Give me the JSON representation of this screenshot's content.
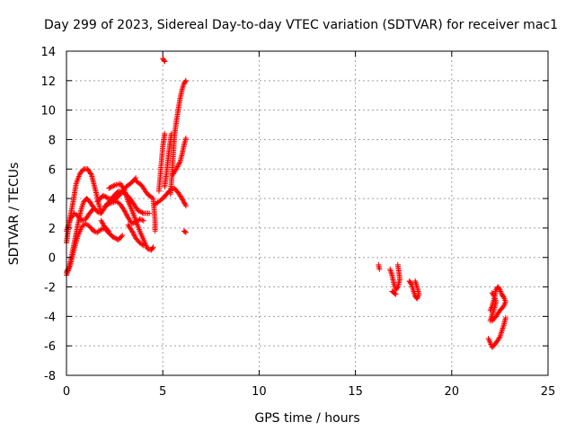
{
  "chart_data": {
    "type": "scatter",
    "title": "Day 299 of 2023, Sidereal Day-to-day VTEC variation (SDTVAR) for receiver mac1",
    "xlabel": "GPS time / hours",
    "ylabel": "SDTVAR / TECUs",
    "xlim": [
      0,
      25
    ],
    "ylim": [
      -8,
      14
    ],
    "grid": true,
    "marker": "+",
    "xticks": [
      0,
      5,
      10,
      15,
      20,
      25
    ],
    "xtick_labels": [
      "0",
      "5",
      "10",
      "15",
      "20",
      "25"
    ],
    "yticks": [
      -8,
      -6,
      -4,
      -2,
      0,
      2,
      4,
      6,
      8,
      10,
      12,
      14
    ],
    "ytick_labels": [
      "-8",
      "-6",
      "-4",
      "-2",
      "0",
      "2",
      "4",
      "6",
      "8",
      "10",
      "12",
      "14"
    ],
    "series": [
      {
        "name": "SDTVAR",
        "color": "#ff0000",
        "tracks": [
          [
            [
              0.0,
              1.0
            ],
            [
              0.1,
              2.0
            ],
            [
              0.2,
              2.8
            ],
            [
              0.35,
              3.8
            ],
            [
              0.5,
              5.0
            ],
            [
              0.7,
              5.7
            ],
            [
              0.9,
              6.0
            ],
            [
              1.1,
              6.0
            ],
            [
              1.3,
              5.6
            ],
            [
              1.5,
              4.6
            ],
            [
              1.7,
              3.5
            ],
            [
              1.8,
              3.0
            ]
          ],
          [
            [
              0.0,
              -1.0
            ],
            [
              0.15,
              -0.6
            ],
            [
              0.3,
              0.3
            ],
            [
              0.45,
              1.3
            ],
            [
              0.6,
              2.3
            ],
            [
              0.75,
              3.2
            ],
            [
              0.9,
              3.8
            ],
            [
              1.05,
              4.0
            ],
            [
              1.2,
              3.8
            ],
            [
              1.4,
              3.4
            ],
            [
              1.6,
              3.1
            ],
            [
              1.8,
              3.0
            ]
          ],
          [
            [
              0.0,
              -1.2
            ],
            [
              0.2,
              -0.5
            ],
            [
              0.4,
              0.6
            ],
            [
              0.6,
              1.5
            ],
            [
              0.8,
              2.1
            ],
            [
              1.0,
              2.3
            ],
            [
              1.2,
              2.1
            ],
            [
              1.4,
              1.8
            ],
            [
              1.6,
              1.7
            ],
            [
              1.8,
              1.9
            ],
            [
              2.0,
              2.0
            ],
            [
              2.2,
              1.8
            ]
          ],
          [
            [
              0.0,
              1.8
            ],
            [
              0.2,
              2.6
            ],
            [
              0.4,
              3.0
            ],
            [
              0.6,
              2.8
            ],
            [
              0.8,
              2.5
            ],
            [
              1.0,
              2.6
            ],
            [
              1.2,
              3.0
            ],
            [
              1.4,
              3.3
            ]
          ],
          [
            [
              1.8,
              2.5
            ],
            [
              2.1,
              1.8
            ],
            [
              2.4,
              1.4
            ],
            [
              2.7,
              1.2
            ],
            [
              2.9,
              1.5
            ]
          ],
          [
            [
              1.8,
              3.0
            ],
            [
              2.1,
              3.6
            ],
            [
              2.4,
              4.1
            ],
            [
              2.7,
              4.5
            ],
            [
              3.0,
              4.4
            ],
            [
              3.3,
              4.0
            ],
            [
              3.5,
              3.6
            ],
            [
              3.7,
              3.2
            ],
            [
              4.0,
              3.0
            ],
            [
              4.3,
              3.0
            ]
          ],
          [
            [
              1.6,
              3.8
            ],
            [
              1.9,
              4.2
            ],
            [
              2.2,
              4.0
            ],
            [
              2.5,
              3.9
            ],
            [
              2.8,
              4.3
            ],
            [
              3.1,
              4.8
            ],
            [
              3.4,
              5.1
            ],
            [
              3.6,
              5.4
            ]
          ],
          [
            [
              2.0,
              3.5
            ],
            [
              2.3,
              3.7
            ],
            [
              2.6,
              3.8
            ],
            [
              2.8,
              3.6
            ],
            [
              3.0,
              3.2
            ],
            [
              3.2,
              2.7
            ],
            [
              3.4,
              2.3
            ],
            [
              3.6,
              2.4
            ],
            [
              3.8,
              2.6
            ],
            [
              4.0,
              2.5
            ]
          ],
          [
            [
              2.2,
              4.7
            ],
            [
              2.5,
              4.9
            ],
            [
              2.8,
              5.0
            ],
            [
              3.0,
              4.6
            ],
            [
              3.2,
              3.8
            ],
            [
              3.4,
              3.2
            ],
            [
              3.6,
              2.5
            ],
            [
              3.8,
              1.8
            ],
            [
              4.0,
              1.2
            ],
            [
              4.2,
              0.6
            ],
            [
              4.4,
              0.5
            ],
            [
              4.5,
              0.7
            ]
          ],
          [
            [
              3.2,
              2.2
            ],
            [
              3.4,
              1.8
            ],
            [
              3.6,
              1.3
            ],
            [
              3.8,
              1.0
            ],
            [
              4.0,
              0.8
            ]
          ],
          [
            [
              3.6,
              5.2
            ],
            [
              3.9,
              4.9
            ],
            [
              4.2,
              4.3
            ],
            [
              4.5,
              4.0
            ],
            [
              4.6,
              2.5
            ],
            [
              4.6,
              1.8
            ]
          ],
          [
            [
              4.6,
              3.6
            ],
            [
              4.8,
              3.8
            ],
            [
              5.0,
              4.0
            ],
            [
              5.2,
              4.3
            ],
            [
              5.4,
              4.6
            ],
            [
              5.6,
              4.7
            ],
            [
              5.8,
              4.4
            ],
            [
              6.0,
              4.0
            ],
            [
              6.2,
              3.5
            ]
          ],
          [
            [
              4.8,
              4.5
            ],
            [
              4.9,
              6.0
            ],
            [
              5.0,
              7.5
            ],
            [
              5.1,
              8.4
            ]
          ],
          [
            [
              5.1,
              4.8
            ],
            [
              5.2,
              5.8
            ],
            [
              5.3,
              7.0
            ],
            [
              5.4,
              8.0
            ],
            [
              5.45,
              8.4
            ]
          ],
          [
            [
              5.4,
              4.3
            ],
            [
              5.5,
              6.0
            ],
            [
              5.6,
              8.2
            ],
            [
              5.7,
              9.2
            ],
            [
              5.8,
              10.0
            ],
            [
              5.9,
              10.8
            ],
            [
              6.0,
              11.4
            ],
            [
              6.1,
              11.8
            ],
            [
              6.2,
              12.0
            ]
          ],
          [
            [
              5.5,
              5.6
            ],
            [
              5.7,
              6.0
            ],
            [
              5.9,
              6.5
            ],
            [
              6.0,
              7.0
            ],
            [
              6.1,
              7.6
            ],
            [
              6.2,
              8.1
            ]
          ],
          [
            [
              5.0,
              13.5
            ],
            [
              5.1,
              13.3
            ]
          ],
          [
            [
              6.1,
              1.8
            ],
            [
              6.2,
              1.7
            ]
          ],
          [
            [
              16.2,
              -0.5
            ],
            [
              16.25,
              -0.8
            ]
          ],
          [
            [
              16.8,
              -0.8
            ],
            [
              16.9,
              -1.2
            ],
            [
              17.0,
              -1.8
            ],
            [
              17.1,
              -2.2
            ],
            [
              17.2,
              -2.0
            ],
            [
              17.3,
              -1.5
            ],
            [
              17.25,
              -0.9
            ],
            [
              17.2,
              -0.5
            ]
          ],
          [
            [
              16.9,
              -2.3
            ],
            [
              17.0,
              -2.4
            ],
            [
              17.1,
              -2.5
            ]
          ],
          [
            [
              17.8,
              -1.6
            ],
            [
              17.9,
              -1.8
            ],
            [
              18.0,
              -2.2
            ],
            [
              18.1,
              -2.6
            ],
            [
              18.2,
              -2.8
            ],
            [
              18.3,
              -2.5
            ],
            [
              18.2,
              -2.0
            ],
            [
              18.1,
              -1.6
            ]
          ],
          [
            [
              22.0,
              -3.6
            ],
            [
              22.1,
              -3.3
            ],
            [
              22.2,
              -2.8
            ],
            [
              22.3,
              -2.2
            ],
            [
              22.4,
              -2.0
            ],
            [
              22.5,
              -2.2
            ],
            [
              22.6,
              -2.5
            ],
            [
              22.7,
              -2.7
            ],
            [
              22.8,
              -3.0
            ],
            [
              22.7,
              -3.3
            ],
            [
              22.5,
              -3.6
            ],
            [
              22.3,
              -4.0
            ],
            [
              22.1,
              -4.3
            ]
          ],
          [
            [
              21.9,
              -5.5
            ],
            [
              22.0,
              -5.8
            ],
            [
              22.1,
              -6.1
            ],
            [
              22.3,
              -5.8
            ],
            [
              22.5,
              -5.4
            ],
            [
              22.6,
              -5.0
            ],
            [
              22.7,
              -4.6
            ],
            [
              22.8,
              -4.1
            ]
          ],
          [
            [
              22.0,
              -4.3
            ],
            [
              22.1,
              -3.9
            ],
            [
              22.2,
              -3.5
            ],
            [
              22.3,
              -3.0
            ],
            [
              22.2,
              -2.6
            ],
            [
              22.1,
              -2.4
            ]
          ]
        ]
      }
    ]
  }
}
